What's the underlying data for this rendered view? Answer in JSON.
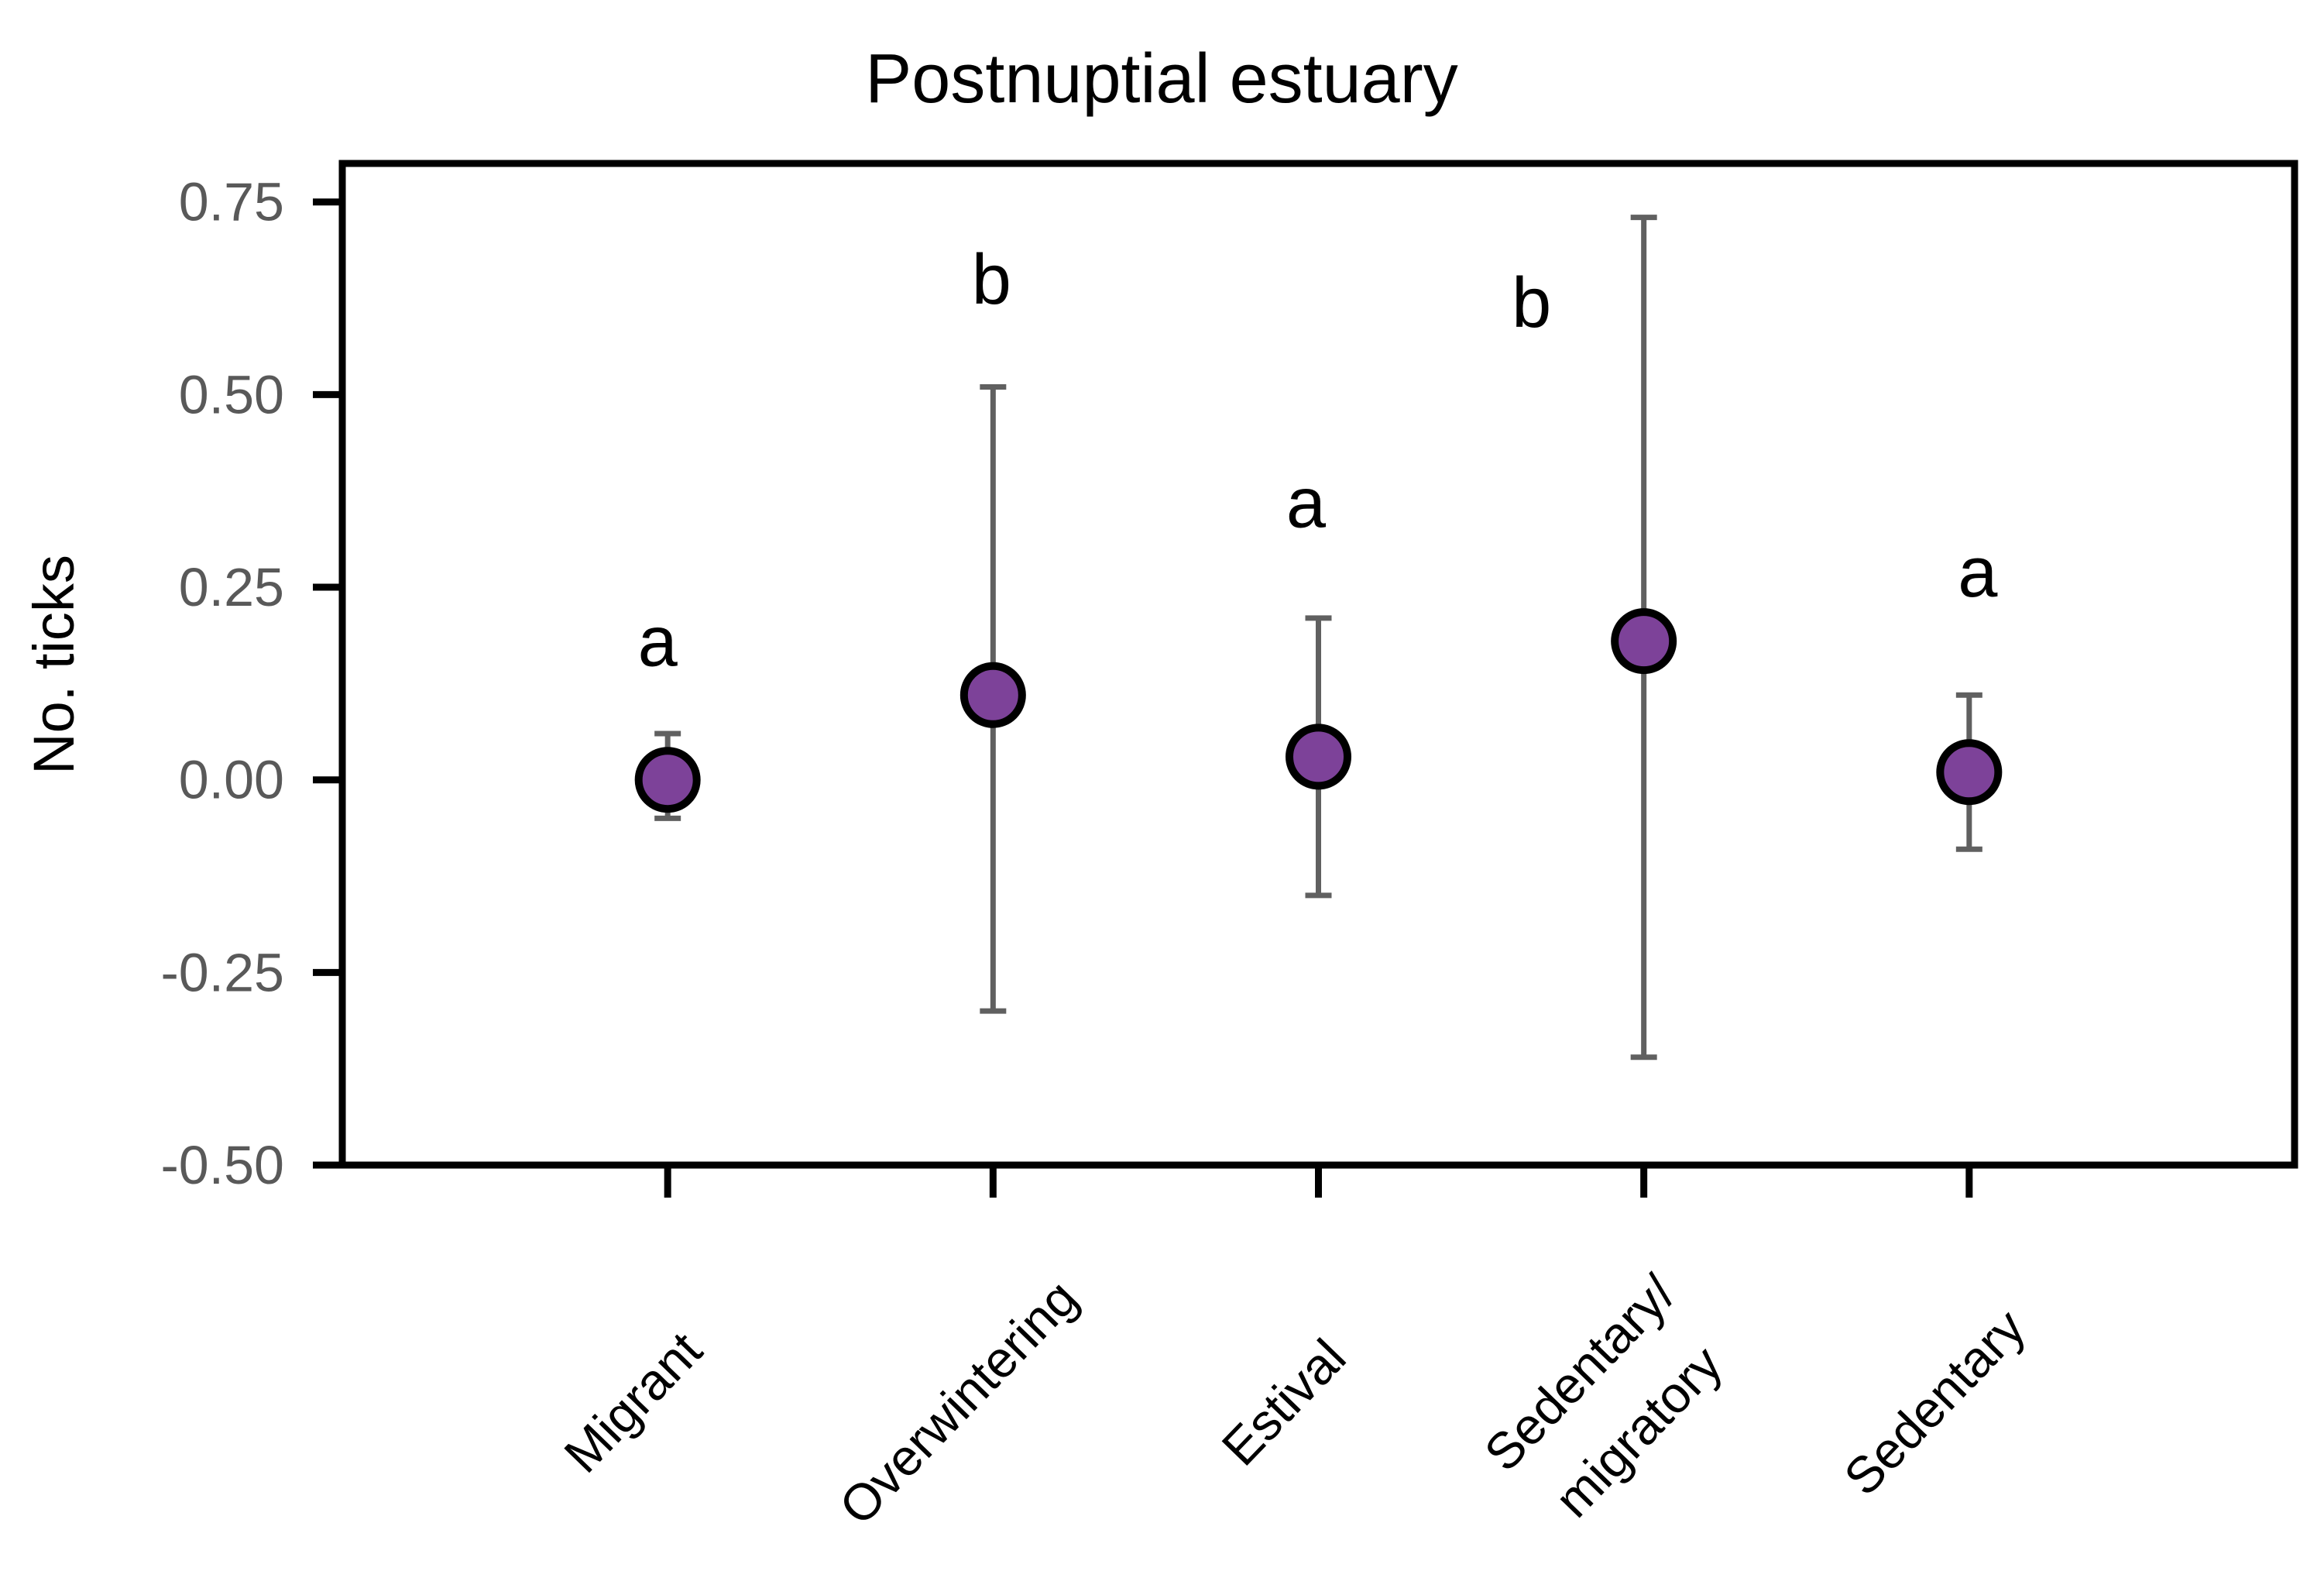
{
  "chart_data": {
    "type": "scatter",
    "title": "Postnuptial estuary",
    "xlabel": "",
    "ylabel": "No. ticks",
    "ylim": [
      -0.5,
      0.8
    ],
    "yticks": [
      0.75,
      0.5,
      0.25,
      0.0,
      -0.25,
      -0.5
    ],
    "ytick_labels": [
      "0.75",
      "0.50",
      "0.25",
      "0.00",
      "-0.25",
      "-0.50"
    ],
    "grid": false,
    "legend_position": "none",
    "categories": [
      "Migrant",
      "Overwintering",
      "Estival",
      "Sedentary/migratory",
      "Sedentary"
    ],
    "points": [
      {
        "category": "Migrant",
        "label_lines": [
          "Migrant"
        ],
        "mean": 0.0,
        "ci_low": -0.05,
        "ci_high": 0.06,
        "letter": "a",
        "letter_y": 0.18,
        "letter_dx": -13
      },
      {
        "category": "Overwintering",
        "label_lines": [
          "Overwintering"
        ],
        "mean": 0.11,
        "ci_low": -0.3,
        "ci_high": 0.51,
        "letter": "b",
        "letter_y": 0.65,
        "letter_dx": -2
      },
      {
        "category": "Estival",
        "label_lines": [
          "Estival"
        ],
        "mean": 0.03,
        "ci_low": -0.15,
        "ci_high": 0.21,
        "letter": "a",
        "letter_y": 0.36,
        "letter_dx": -16
      },
      {
        "category": "Sedentary/migratory",
        "label_lines": [
          "Sedentary/",
          "migratory"
        ],
        "mean": 0.18,
        "ci_low": -0.36,
        "ci_high": 0.73,
        "letter": "b",
        "letter_y": 0.62,
        "letter_dx": -145
      },
      {
        "category": "Sedentary",
        "label_lines": [
          "Sedentary"
        ],
        "mean": 0.01,
        "ci_low": -0.09,
        "ci_high": 0.11,
        "letter": "a",
        "letter_y": 0.27,
        "letter_dx": 11
      }
    ],
    "colors": {
      "marker_fill": "#7d4299",
      "marker_stroke": "#000000",
      "error_bar": "#606060",
      "axis": "#000000",
      "tick_label": "#595959",
      "category_label": "#000000",
      "letter": "#000000",
      "background": "#ffffff"
    }
  }
}
